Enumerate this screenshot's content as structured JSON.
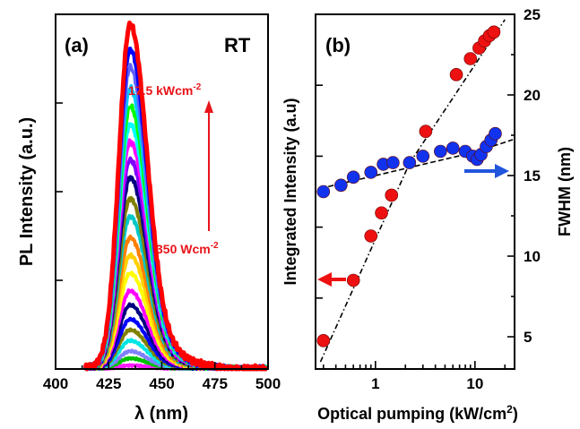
{
  "chart_data": [
    {
      "type": "line",
      "panel_label": "(a)",
      "corner_label": "RT",
      "xlabel": "λ (nm)",
      "ylabel": "PL Intensity (a.u.)",
      "xlim": [
        400,
        500
      ],
      "x_ticks": [
        "400",
        "425",
        "450",
        "475",
        "500"
      ],
      "x_tick_values": [
        400,
        425,
        450,
        475,
        500
      ],
      "ylim": [
        0,
        1.0
      ],
      "y_tick_labels": false,
      "annotation_high": "17.5 kWcm",
      "annotation_high_sup": "-2",
      "annotation_low": "350 Wcm",
      "annotation_low_sup": "-2",
      "annotation_color": "#e8141a",
      "spectrum_start_nm": 414,
      "peak_nm": 435,
      "series": [
        {
          "peak": 0.01,
          "color": "#ff1aff"
        },
        {
          "peak": 0.03,
          "color": "#00c000"
        },
        {
          "peak": 0.05,
          "color": "#8080ff"
        },
        {
          "peak": 0.08,
          "color": "#00e5e5"
        },
        {
          "peak": 0.11,
          "color": "#808000"
        },
        {
          "peak": 0.14,
          "color": "#0000ff"
        },
        {
          "peak": 0.18,
          "color": "#000080"
        },
        {
          "peak": 0.22,
          "color": "#ff00ff"
        },
        {
          "peak": 0.27,
          "color": "#ffff00"
        },
        {
          "peak": 0.32,
          "color": "#ffd000"
        },
        {
          "peak": 0.37,
          "color": "#ff8000"
        },
        {
          "peak": 0.43,
          "color": "#00c8c8"
        },
        {
          "peak": 0.48,
          "color": "#808000"
        },
        {
          "peak": 0.54,
          "color": "#000080"
        },
        {
          "peak": 0.59,
          "color": "#8000ff"
        },
        {
          "peak": 0.64,
          "color": "#ff00ff"
        },
        {
          "peak": 0.69,
          "color": "#00ffff"
        },
        {
          "peak": 0.74,
          "color": "#00ff00"
        },
        {
          "peak": 0.79,
          "color": "#00c8ff"
        },
        {
          "peak": 0.85,
          "color": "#6060ff"
        },
        {
          "peak": 0.9,
          "color": "#0000ff"
        },
        {
          "peak": 0.97,
          "color": "#ff0000"
        }
      ]
    },
    {
      "type": "scatter",
      "panel_label": "(b)",
      "xlabel": "Optical pumping (kW/cm",
      "xlabel_sup": "2",
      "xlabel_close": ")",
      "xscale": "log",
      "xlim": [
        0.25,
        25
      ],
      "x_ticks": [
        "1",
        "10"
      ],
      "x_tick_values": [
        1,
        10
      ],
      "ylabel_left": "Integrated Intensity (a.u)",
      "ylabel_right": "FWHM (nm)",
      "y_right_lim": [
        3,
        25
      ],
      "y_right_ticks": [
        "5",
        "10",
        "15",
        "20",
        "25"
      ],
      "y_right_tick_values": [
        5,
        10,
        15,
        20,
        25
      ],
      "y_left_lim": [
        0,
        1
      ],
      "series": [
        {
          "axis": "left",
          "color": "#ee1111",
          "x": [
            0.3,
            0.6,
            0.9,
            1.15,
            1.45,
            3.2,
            6.5,
            9.0,
            11.0,
            12.5,
            14.0,
            15.5
          ],
          "y": [
            0.08,
            0.25,
            0.375,
            0.44,
            0.49,
            0.67,
            0.83,
            0.875,
            0.905,
            0.925,
            0.94,
            0.95
          ]
        },
        {
          "axis": "right",
          "color": "#1133ee",
          "x": [
            0.3,
            0.45,
            0.6,
            0.9,
            1.2,
            1.5,
            2.2,
            3.0,
            4.5,
            6.0,
            8.0,
            9.5,
            10.5,
            11.5,
            13.0,
            14.5,
            16.0
          ],
          "y": [
            14.0,
            14.4,
            14.9,
            15.2,
            15.7,
            15.8,
            15.8,
            16.2,
            16.5,
            16.7,
            16.5,
            16.2,
            16.0,
            16.3,
            16.8,
            17.2,
            17.6
          ]
        }
      ],
      "left_arrow_color": "#ee1111",
      "right_arrow_color": "#2255dd"
    }
  ]
}
